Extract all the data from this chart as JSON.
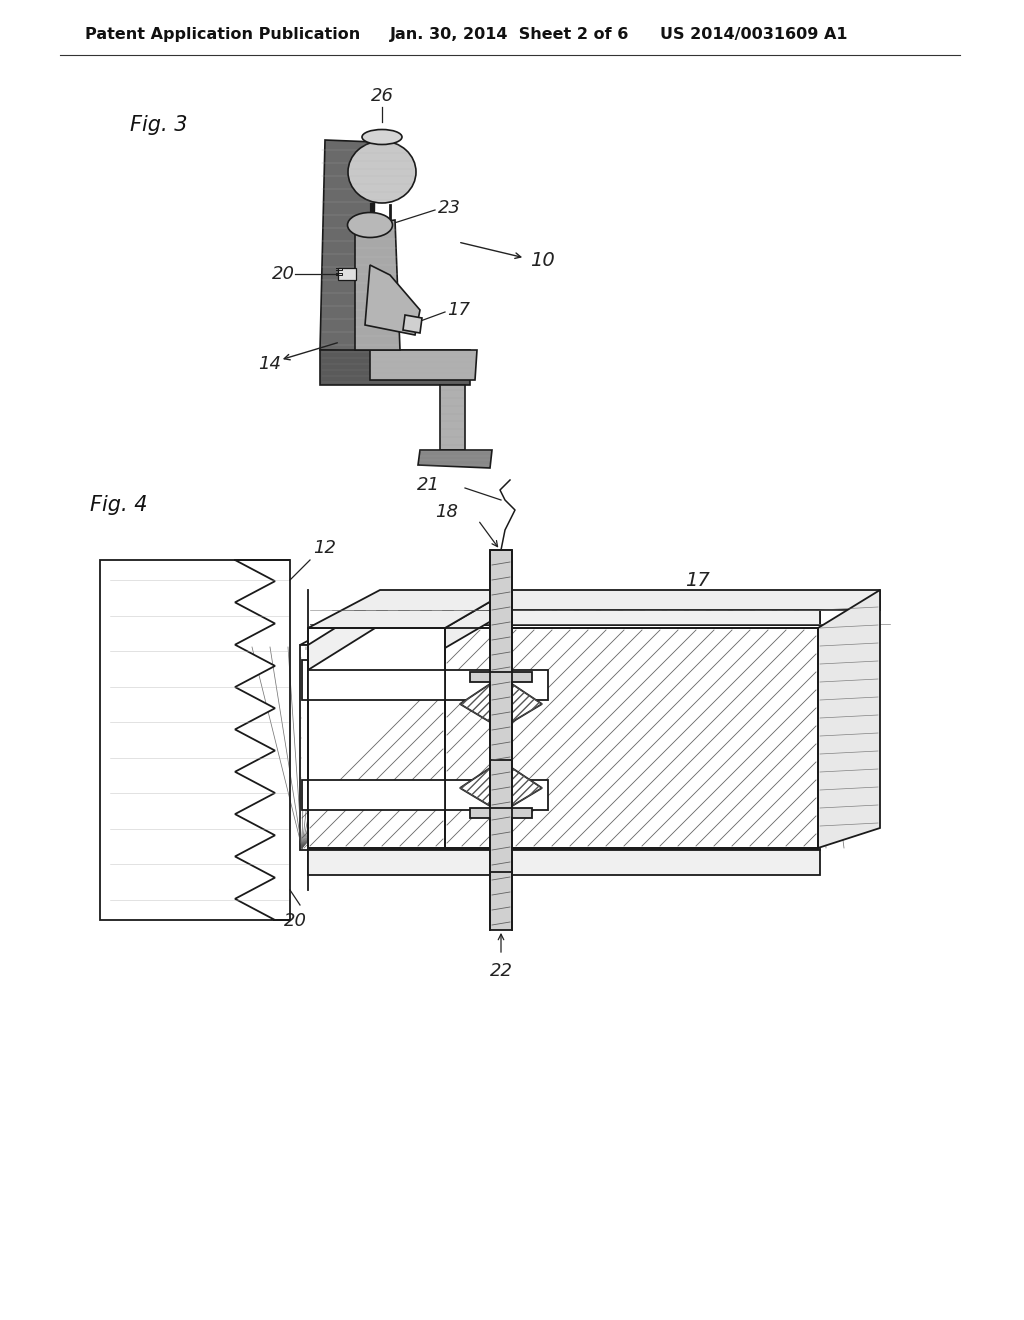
{
  "page_bg": "#ffffff",
  "header_left": "Patent Application Publication",
  "header_mid": "Jan. 30, 2014  Sheet 2 of 6",
  "header_right": "US 2014/0031609 A1",
  "fig3_label": "Fig. 3",
  "fig4_label": "Fig. 4",
  "line_color": "#222222",
  "hatch_color": "#555555",
  "bg_color": "#f5f5f0",
  "annotation_font_size": 13,
  "fig_label_font_size": 15,
  "header_font_size": 11.5
}
